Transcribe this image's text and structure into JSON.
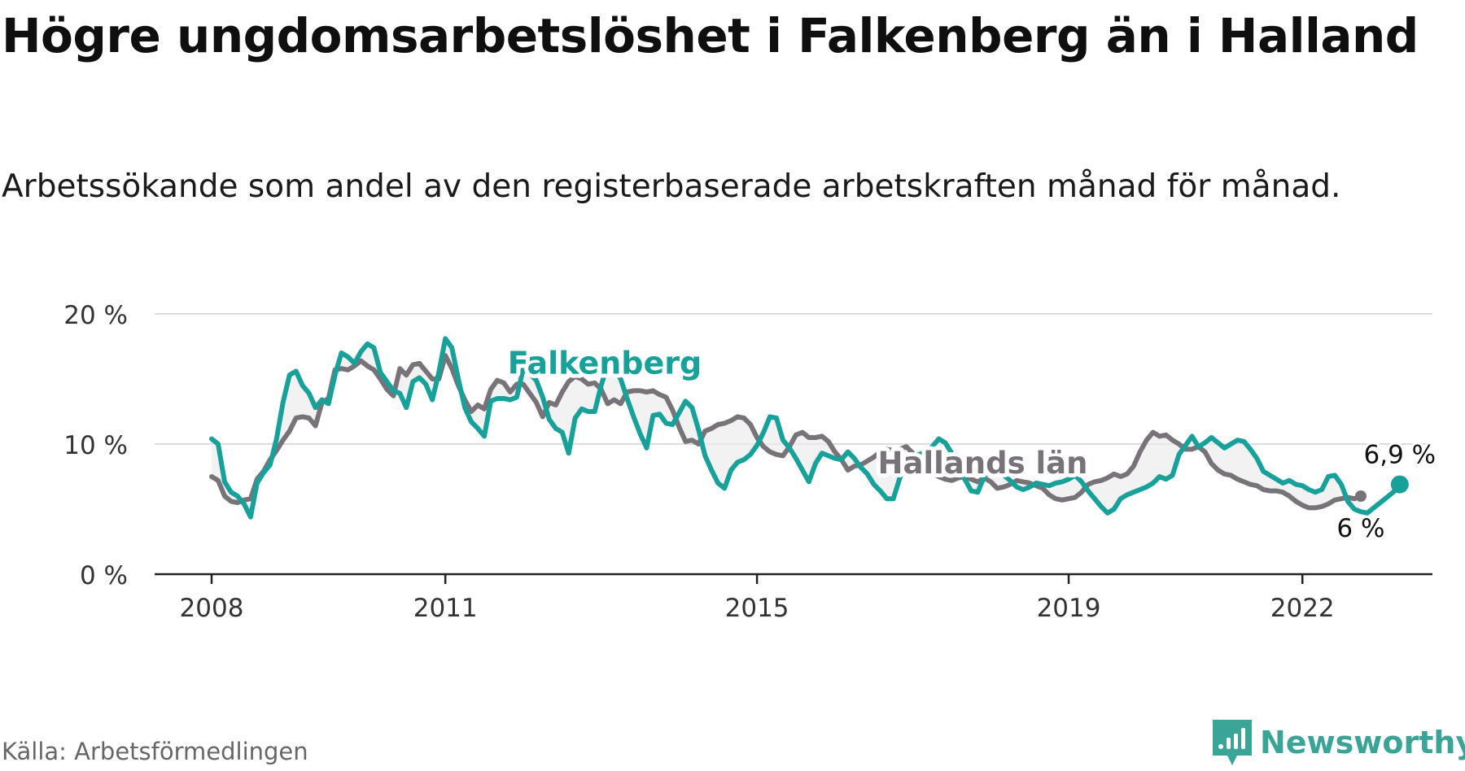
{
  "title": "Högre ungdomsarbetslöshet i Falkenberg än i Halland",
  "subtitle": "Arbetssökande som andel av den registerbaserade arbetskraften månad för månad.",
  "source": "Källa: Arbetsförmedlingen",
  "brand": "Newsworthy",
  "colors": {
    "falkenberg": "#17a19a",
    "halland": "#787378",
    "grid": "#dddddd",
    "axis": "#222222",
    "brand": "#3aa597"
  },
  "chart_data": {
    "type": "line",
    "title": "Högre ungdomsarbetslöshet i Falkenberg än i Halland",
    "xlabel": "",
    "ylabel": "",
    "ylim": [
      0,
      20
    ],
    "xlim": [
      2008.0,
      2022.917
    ],
    "yticks": [
      {
        "value": 0,
        "label": "0 %"
      },
      {
        "value": 10,
        "label": "10 %"
      },
      {
        "value": 20,
        "label": "20 %"
      }
    ],
    "xticks": [
      {
        "value": 2008,
        "label": "2008"
      },
      {
        "value": 2011,
        "label": "2011"
      },
      {
        "value": 2015,
        "label": "2015"
      },
      {
        "value": 2019,
        "label": "2019"
      },
      {
        "value": 2022,
        "label": "2022"
      }
    ],
    "start": 2008.0,
    "step": 0.08333,
    "series": [
      {
        "name": "Hallands län",
        "label": "Hallands län",
        "end_label": "6 %",
        "color": "#787378",
        "values": [
          7.5,
          7.2,
          6.0,
          5.6,
          5.5,
          5.7,
          5.8,
          7.3,
          7.9,
          8.8,
          9.5,
          10.3,
          11.0,
          12.0,
          12.1,
          12.0,
          11.4,
          13.2,
          13.5,
          15.7,
          15.8,
          15.7,
          16.0,
          16.4,
          16.0,
          15.7,
          15.0,
          14.2,
          13.7,
          15.8,
          15.3,
          16.1,
          16.2,
          15.6,
          15.0,
          15.0,
          16.8,
          15.8,
          14.5,
          13.4,
          12.5,
          13.0,
          12.7,
          14.2,
          14.9,
          14.7,
          14.0,
          14.6,
          14.6,
          13.9,
          13.2,
          12.1,
          13.2,
          13.0,
          14.0,
          14.8,
          15.2,
          15.0,
          14.6,
          14.7,
          14.2,
          13.1,
          13.4,
          13.1,
          14.0,
          14.1,
          14.1,
          14.0,
          14.1,
          13.8,
          13.6,
          12.6,
          11.3,
          10.2,
          10.3,
          10.0,
          11.0,
          11.2,
          11.5,
          11.6,
          11.8,
          12.1,
          12.0,
          11.5,
          10.5,
          9.8,
          9.4,
          9.2,
          9.1,
          9.8,
          10.7,
          10.9,
          10.5,
          10.5,
          10.6,
          10.2,
          9.4,
          8.8,
          8.0,
          8.3,
          8.4,
          8.7,
          9.0,
          9.4,
          9.6,
          9.5,
          9.6,
          9.8,
          9.3,
          8.6,
          8.2,
          7.8,
          7.5,
          7.3,
          7.2,
          7.4,
          7.5,
          7.3,
          7.1,
          7.4,
          7.1,
          6.6,
          6.7,
          6.9,
          7.2,
          7.1,
          7.0,
          6.8,
          6.6,
          6.1,
          5.8,
          5.7,
          5.8,
          5.9,
          6.3,
          6.9,
          7.1,
          7.2,
          7.4,
          7.7,
          7.5,
          7.7,
          8.3,
          9.4,
          10.3,
          10.9,
          10.6,
          10.7,
          10.3,
          10.0,
          9.6,
          9.6,
          9.8,
          9.4,
          8.5,
          8.0,
          7.7,
          7.6,
          7.3,
          7.1,
          6.9,
          6.8,
          6.5,
          6.4,
          6.4,
          6.3,
          6.0,
          5.6,
          5.3,
          5.1,
          5.1,
          5.2,
          5.4,
          5.7,
          5.8,
          5.9,
          5.8,
          6.0
        ]
      },
      {
        "name": "Falkenberg",
        "label": "Falkenberg",
        "end_label": "6,9 %",
        "color": "#17a19a",
        "values": [
          10.4,
          10.0,
          7.1,
          6.3,
          6.0,
          5.4,
          4.4,
          7.0,
          7.8,
          8.4,
          10.4,
          13.2,
          15.3,
          15.6,
          14.5,
          13.9,
          12.8,
          13.4,
          13.1,
          15.3,
          17.0,
          16.7,
          16.2,
          17.1,
          17.7,
          17.4,
          15.5,
          14.8,
          14.1,
          13.9,
          12.8,
          14.8,
          15.1,
          14.6,
          13.4,
          15.5,
          18.1,
          17.4,
          15.0,
          12.8,
          11.7,
          11.2,
          10.6,
          13.3,
          13.5,
          13.5,
          13.4,
          13.6,
          15.8,
          15.4,
          14.9,
          13.6,
          11.9,
          11.2,
          10.9,
          9.3,
          12.0,
          12.7,
          12.5,
          12.5,
          14.5,
          16.1,
          15.9,
          15.0,
          13.5,
          12.1,
          10.8,
          9.7,
          12.2,
          12.3,
          11.6,
          11.5,
          12.4,
          13.3,
          12.8,
          11.1,
          9.1,
          8.0,
          7.0,
          6.6,
          8.0,
          8.6,
          8.8,
          9.2,
          9.9,
          10.9,
          12.1,
          12.0,
          10.3,
          9.7,
          8.9,
          8.0,
          7.1,
          8.5,
          9.3,
          9.1,
          8.9,
          8.8,
          9.4,
          8.9,
          8.2,
          7.7,
          6.9,
          6.4,
          5.8,
          5.8,
          7.4,
          8.6,
          9.1,
          9.2,
          9.4,
          9.8,
          10.4,
          10.1,
          9.3,
          8.3,
          7.3,
          6.4,
          6.3,
          7.5,
          8.3,
          8.0,
          7.6,
          7.2,
          6.7,
          6.5,
          6.7,
          7.0,
          6.9,
          6.8,
          7.0,
          7.1,
          7.3,
          7.6,
          7.1,
          6.4,
          5.8,
          5.2,
          4.7,
          5.0,
          5.8,
          6.1,
          6.3,
          6.5,
          6.7,
          7.0,
          7.5,
          7.3,
          7.6,
          9.2,
          9.9,
          10.6,
          9.8,
          10.1,
          10.5,
          10.1,
          9.7,
          10.0,
          10.3,
          10.2,
          9.6,
          8.9,
          7.9,
          7.6,
          7.3,
          7.0,
          7.2,
          6.9,
          6.8,
          6.5,
          6.3,
          6.5,
          7.5,
          7.6,
          6.9,
          5.6,
          5.0,
          4.8,
          4.7,
          5.1,
          5.5,
          5.9,
          6.3,
          6.9
        ]
      }
    ]
  }
}
